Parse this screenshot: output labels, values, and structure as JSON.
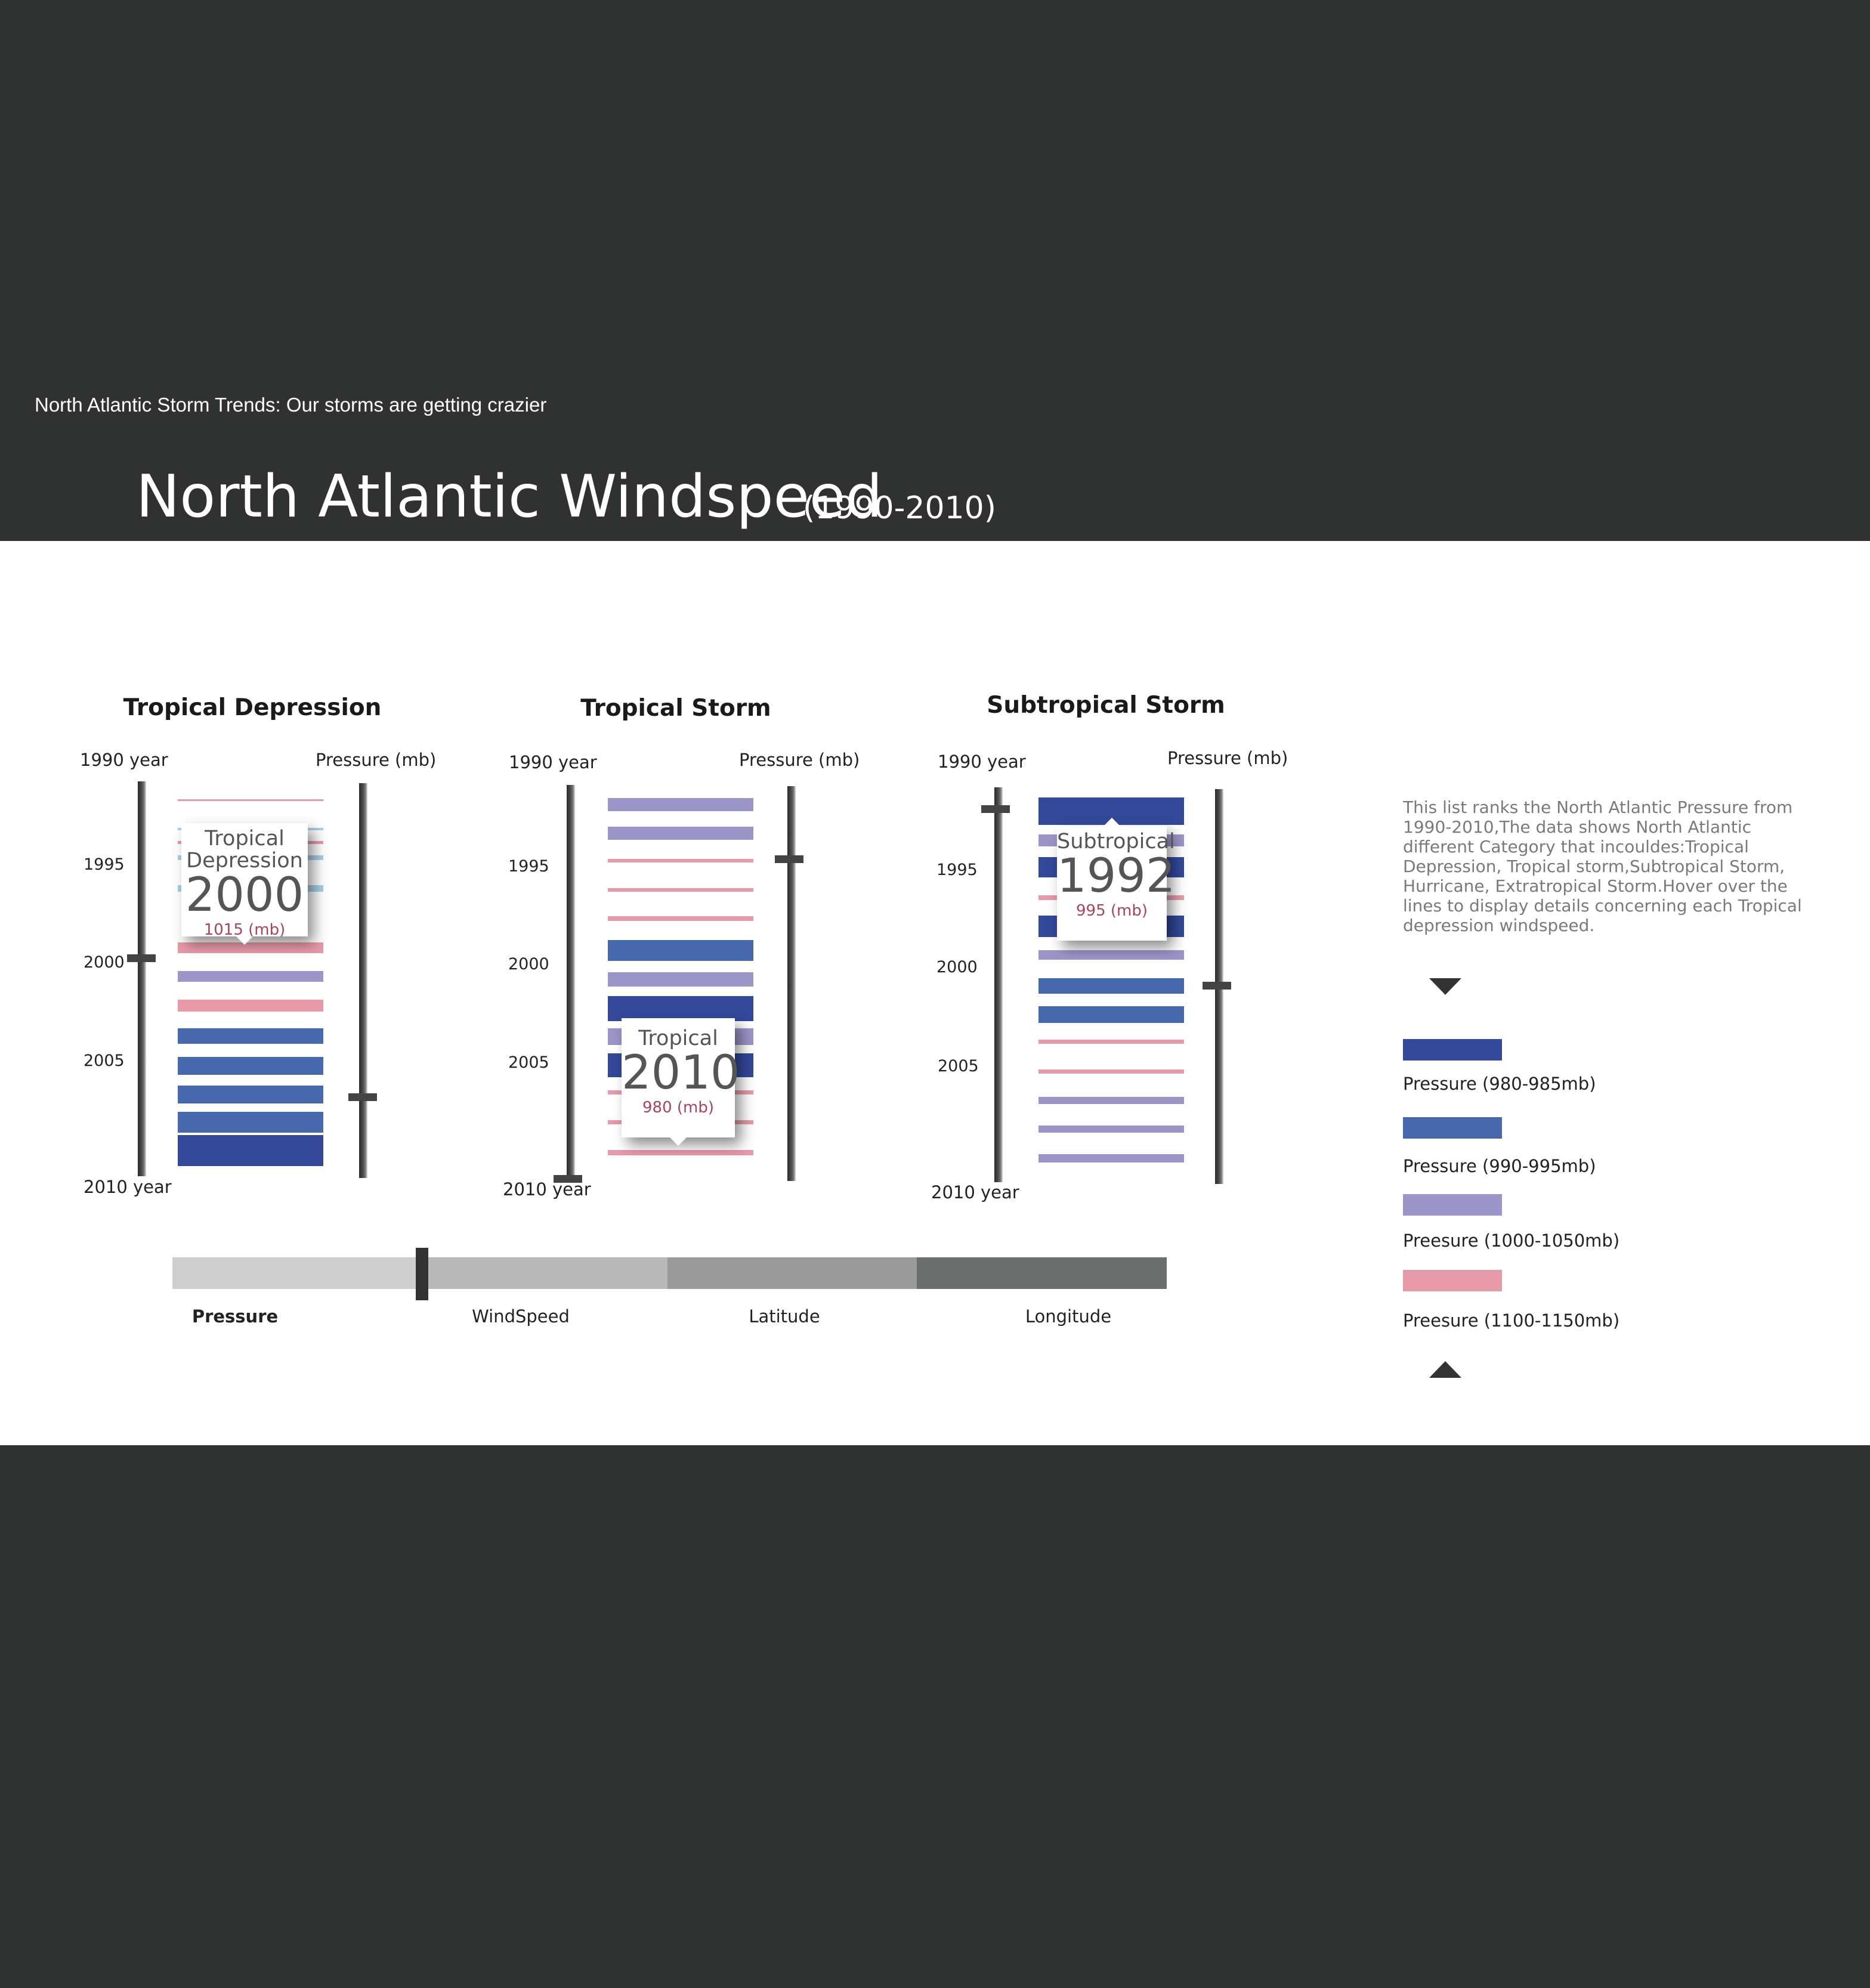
{
  "header": {
    "tagline": "North Atlantic Storm Trends: Our storms are getting crazier",
    "title": "North Atlantic Windspeed",
    "range": "(1990-2010)"
  },
  "colors": {
    "pressure_980_985": "#34489a",
    "pressure_990_995": "#4868ae",
    "pressure_1000_1050": "#9c95c8",
    "pressure_1100_1150": "#e79aa9",
    "light_blue": "#a8d0e4",
    "background_dark": "#303131",
    "panel_white": "#ffffff"
  },
  "panels": [
    {
      "title": "Tropical Depression",
      "year_top": "1990 year",
      "year_bottom": "2010 year",
      "pressure_label": "Pressure (mb)",
      "ticks": [
        "1995",
        "2000",
        "2005"
      ],
      "year_slider_value": 2000,
      "pressure_slider_fraction": 0.8,
      "tooltip": {
        "name": "Tropical\nDepression",
        "year": "2000",
        "pressure": "1015  (mb)"
      }
    },
    {
      "title": "Tropical Storm",
      "year_top": "1990 year",
      "year_bottom": "2010 year",
      "pressure_label": "Pressure (mb)",
      "ticks": [
        "1995",
        "2000",
        "2005"
      ],
      "year_slider_value": 2010,
      "pressure_slider_fraction": 0.18,
      "tooltip": {
        "name": "Tropical",
        "year": "2010",
        "pressure": "980 (mb)"
      }
    },
    {
      "title": "Subtropical Storm",
      "year_top": "1990 year",
      "year_bottom": "2010 year",
      "pressure_label": "Pressure (mb)",
      "ticks": [
        "1995",
        "2000",
        "2005"
      ],
      "year_slider_value": 1992,
      "pressure_slider_fraction": 0.5,
      "tooltip": {
        "name": "Subtropical",
        "year": "1992",
        "pressure": "995 (mb)"
      }
    }
  ],
  "description": "This list ranks the North Atlantic Pressure from 1990-2010,The data shows North Atlantic different Category that incouldes:Tropical Depression, Tropical storm,Subtropical Storm, Hurricane, Extratropical Storm.Hover over the lines  to display details concerning each Tropical depression windspeed.",
  "legend": [
    {
      "label": "Pressure (980-985mb)",
      "color": "#34489a"
    },
    {
      "label": "Pressure (990-995mb)",
      "color": "#4868ae"
    },
    {
      "label": "Preesure (1000-1050mb)",
      "color": "#9c95c8"
    },
    {
      "label": "Preesure (1100-1150mb)",
      "color": "#e79aa9"
    }
  ],
  "nav": [
    {
      "label": "Pressure",
      "active": true
    },
    {
      "label": "WindSpeed",
      "active": false
    },
    {
      "label": "Latitude",
      "active": false
    },
    {
      "label": "Longitude",
      "active": false
    }
  ]
}
